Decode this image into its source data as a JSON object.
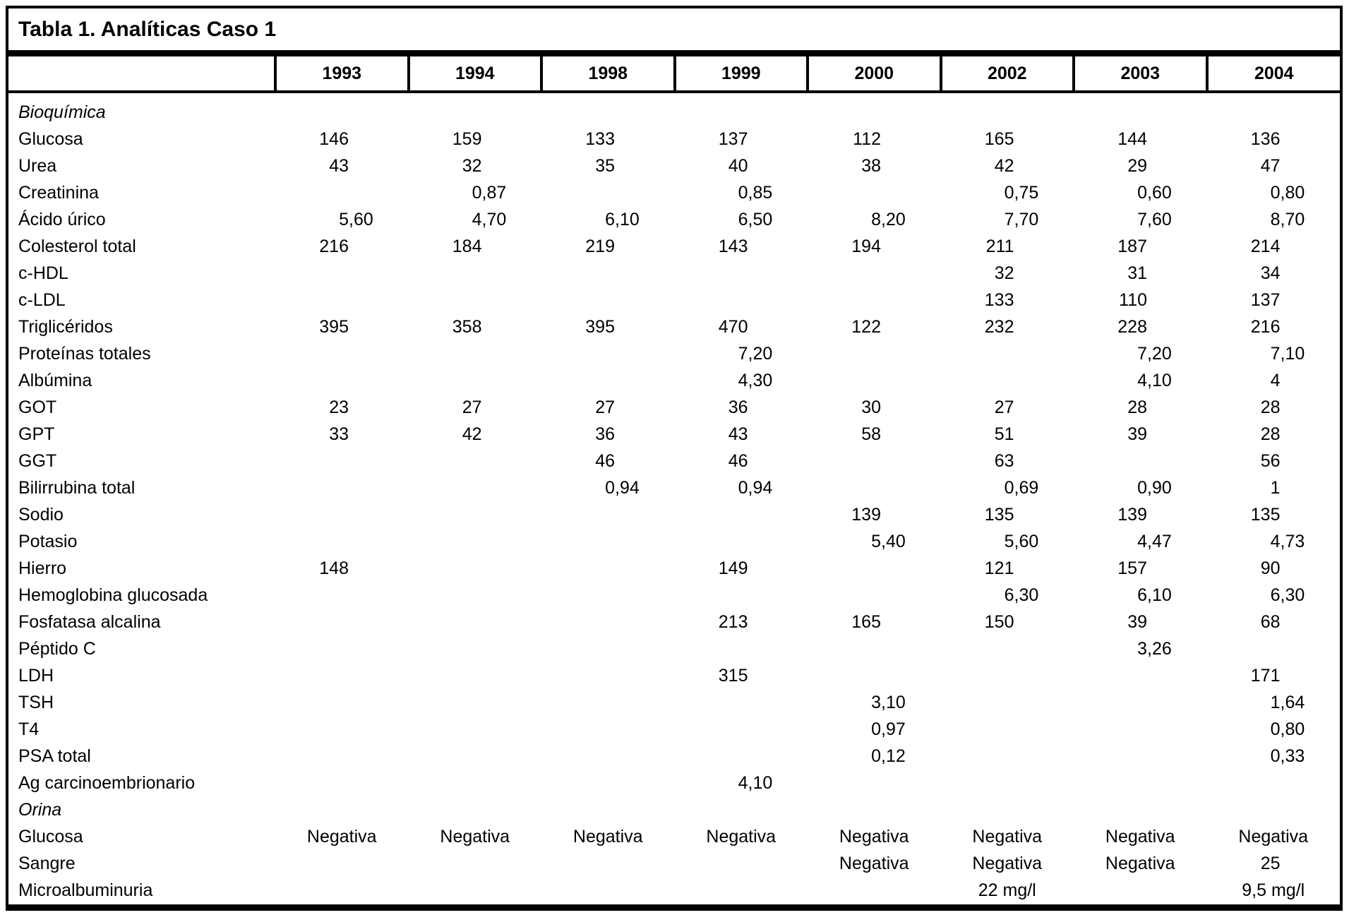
{
  "chart_data": {
    "type": "table",
    "title": "Tabla 1. Analíticas Caso 1",
    "columns": [
      "1993",
      "1994",
      "1998",
      "1999",
      "2000",
      "2002",
      "2003",
      "2004"
    ],
    "rows": [
      {
        "label": "Bioquímica",
        "kind": "section",
        "values": [
          "",
          "",
          "",
          "",
          "",
          "",
          "",
          ""
        ]
      },
      {
        "label": "Glucosa",
        "kind": "data",
        "values": [
          "146",
          "159",
          "133",
          "137",
          "112",
          "165",
          "144",
          "136"
        ]
      },
      {
        "label": "Urea",
        "kind": "data",
        "values": [
          "43",
          "32",
          "35",
          "40",
          "38",
          "42",
          "29",
          "47"
        ]
      },
      {
        "label": "Creatinina",
        "kind": "data",
        "values": [
          "",
          "0,87",
          "",
          "0,85",
          "",
          "0,75",
          "0,60",
          "0,80"
        ]
      },
      {
        "label": "Ácido úrico",
        "kind": "data",
        "values": [
          "5,60",
          "4,70",
          "6,10",
          "6,50",
          "8,20",
          "7,70",
          "7,60",
          "8,70"
        ]
      },
      {
        "label": "Colesterol total",
        "kind": "data",
        "values": [
          "216",
          "184",
          "219",
          "143",
          "194",
          "211",
          "187",
          "214"
        ]
      },
      {
        "label": "c-HDL",
        "kind": "data",
        "values": [
          "",
          "",
          "",
          "",
          "",
          "32",
          "31",
          "34"
        ]
      },
      {
        "label": "c-LDL",
        "kind": "data",
        "values": [
          "",
          "",
          "",
          "",
          "",
          "133",
          "110",
          "137"
        ]
      },
      {
        "label": "Triglicéridos",
        "kind": "data",
        "values": [
          "395",
          "358",
          "395",
          "470",
          "122",
          "232",
          "228",
          "216"
        ]
      },
      {
        "label": "Proteínas totales",
        "kind": "data",
        "values": [
          "",
          "",
          "",
          "7,20",
          "",
          "",
          "7,20",
          "7,10"
        ]
      },
      {
        "label": "Albúmina",
        "kind": "data",
        "values": [
          "",
          "",
          "",
          "4,30",
          "",
          "",
          "4,10",
          "4"
        ]
      },
      {
        "label": "GOT",
        "kind": "data",
        "values": [
          "23",
          "27",
          "27",
          "36",
          "30",
          "27",
          "28",
          "28"
        ]
      },
      {
        "label": "GPT",
        "kind": "data",
        "values": [
          "33",
          "42",
          "36",
          "43",
          "58",
          "51",
          "39",
          "28"
        ]
      },
      {
        "label": "GGT",
        "kind": "data",
        "values": [
          "",
          "",
          "46",
          "46",
          "",
          "63",
          "",
          "56"
        ]
      },
      {
        "label": "Bilirrubina total",
        "kind": "data",
        "values": [
          "",
          "",
          "0,94",
          "0,94",
          "",
          "0,69",
          "0,90",
          "1"
        ]
      },
      {
        "label": "Sodio",
        "kind": "data",
        "values": [
          "",
          "",
          "",
          "",
          "139",
          "135",
          "139",
          "135"
        ]
      },
      {
        "label": "Potasio",
        "kind": "data",
        "values": [
          "",
          "",
          "",
          "",
          "5,40",
          "5,60",
          "4,47",
          "4,73"
        ]
      },
      {
        "label": "Hierro",
        "kind": "data",
        "values": [
          "148",
          "",
          "",
          "149",
          "",
          "121",
          "157",
          "90"
        ]
      },
      {
        "label": "Hemoglobina glucosada",
        "kind": "data",
        "values": [
          "",
          "",
          "",
          "",
          "",
          "6,30",
          "6,10",
          "6,30"
        ]
      },
      {
        "label": "Fosfatasa alcalina",
        "kind": "data",
        "values": [
          "",
          "",
          "",
          "213",
          "165",
          "150",
          "39",
          "68"
        ]
      },
      {
        "label": "Péptido C",
        "kind": "data",
        "values": [
          "",
          "",
          "",
          "",
          "",
          "",
          "3,26",
          ""
        ]
      },
      {
        "label": "LDH",
        "kind": "data",
        "values": [
          "",
          "",
          "",
          "315",
          "",
          "",
          "",
          "171"
        ]
      },
      {
        "label": "TSH",
        "kind": "data",
        "values": [
          "",
          "",
          "",
          "",
          "3,10",
          "",
          "",
          "1,64"
        ]
      },
      {
        "label": "T4",
        "kind": "data",
        "values": [
          "",
          "",
          "",
          "",
          "0,97",
          "",
          "",
          "0,80"
        ]
      },
      {
        "label": "PSA total",
        "kind": "data",
        "values": [
          "",
          "",
          "",
          "",
          "0,12",
          "",
          "",
          "0,33"
        ]
      },
      {
        "label": "Ag carcinoembrionario",
        "kind": "data",
        "values": [
          "",
          "",
          "",
          "4,10",
          "",
          "",
          "",
          ""
        ]
      },
      {
        "label": "Orina",
        "kind": "section",
        "values": [
          "",
          "",
          "",
          "",
          "",
          "",
          "",
          ""
        ]
      },
      {
        "label": "Glucosa",
        "kind": "data",
        "values": [
          "Negativa",
          "Negativa",
          "Negativa",
          "Negativa",
          "Negativa",
          "Negativa",
          "Negativa",
          "Negativa"
        ]
      },
      {
        "label": "Sangre",
        "kind": "data",
        "values": [
          "",
          "",
          "",
          "",
          "Negativa",
          "Negativa",
          "Negativa",
          "25"
        ]
      },
      {
        "label": "Microalbuminuria",
        "kind": "data",
        "values": [
          "",
          "",
          "",
          "",
          "",
          "22 mg/l",
          "",
          "9,5 mg/l"
        ]
      }
    ]
  }
}
